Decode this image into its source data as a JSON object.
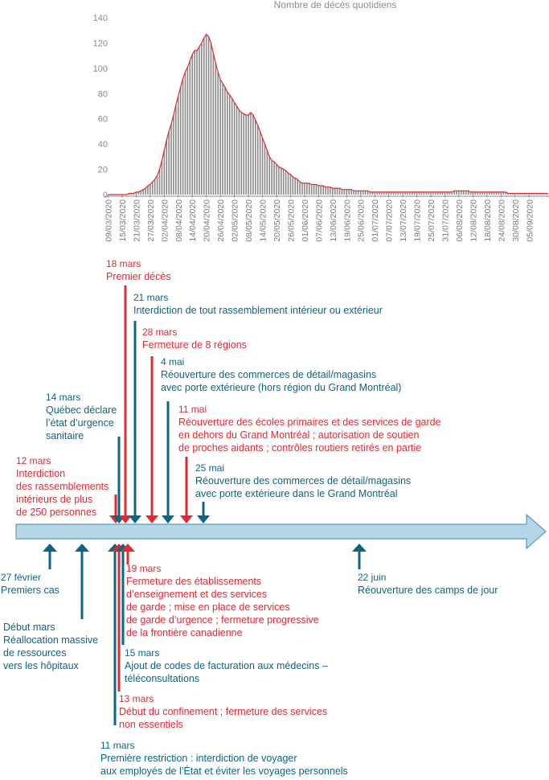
{
  "colors": {
    "red": "#e02a34",
    "blue": "#0c6683",
    "bar": "#8a8a8a",
    "arrow_fill": "#b7d7e8",
    "arrow_stroke": "#5b9cbd"
  },
  "chart_data": {
    "type": "bar",
    "title": "Nombre de décès quotidiens",
    "ylim": [
      0,
      140
    ],
    "yticks": [
      0,
      20,
      40,
      60,
      80,
      100,
      120,
      140
    ],
    "xtick_labels": [
      "09/03/2020",
      "15/03/2020",
      "21/03/2020",
      "27/03/2020",
      "02/04/2020",
      "08/04/2020",
      "14/04/2020",
      "20/04/2020",
      "26/04/2020",
      "02/05/2020",
      "08/05/2020",
      "14/05/2020",
      "20/05/2020",
      "26/05/2020",
      "01/06/2020",
      "07/06/2020",
      "13/06/2020",
      "19/06/2020",
      "25/06/2020",
      "01/07/2020",
      "07/07/2020",
      "13/07/2020",
      "19/07/2020",
      "25/07/2020",
      "31/07/2020",
      "06/08/2020",
      "12/08/2020",
      "18/08/2020",
      "24/08/2020",
      "30/08/2020",
      "05/09/2020"
    ],
    "start_date": "09/03/2020",
    "series": [
      {
        "values": [
          0,
          0,
          0,
          0,
          0,
          0,
          0,
          0,
          0,
          1,
          1,
          1,
          2,
          2,
          3,
          4,
          5,
          7,
          8,
          10,
          12,
          15,
          20,
          27,
          35,
          43,
          50,
          56,
          63,
          71,
          78,
          85,
          92,
          97,
          101,
          106,
          111,
          114,
          114,
          117,
          120,
          124,
          127,
          125,
          120,
          112,
          104,
          97,
          91,
          88,
          85,
          81,
          79,
          76,
          73,
          70,
          67,
          65,
          64,
          63,
          63,
          65,
          63,
          59,
          55,
          50,
          45,
          40,
          35,
          30,
          27,
          26,
          24,
          22,
          21,
          20,
          19,
          17,
          16,
          14,
          13,
          12,
          10,
          9,
          9,
          9,
          9,
          8,
          8,
          8,
          7,
          7,
          7,
          6,
          6,
          6,
          5,
          5,
          5,
          5,
          4,
          4,
          4,
          4,
          4,
          3,
          3,
          3,
          3,
          3,
          3,
          3,
          2,
          2,
          2,
          2,
          2,
          2,
          2,
          2,
          2,
          2,
          2,
          2,
          2,
          2,
          2,
          2,
          2,
          2,
          2,
          2,
          2,
          2,
          2,
          2,
          2,
          2,
          2,
          2,
          2,
          2,
          2,
          2,
          2,
          2,
          2,
          2,
          3,
          3,
          3,
          3,
          3,
          3,
          3,
          2,
          2,
          2,
          2,
          2,
          2,
          2,
          2,
          2,
          2,
          2,
          2,
          2,
          2,
          2,
          2,
          1,
          1,
          1,
          1,
          1,
          1,
          1,
          1,
          1,
          1,
          1,
          1,
          1,
          1,
          1,
          1,
          1,
          1
        ]
      }
    ]
  },
  "events_above": [
    {
      "date": "18 mars",
      "text": [
        "Premier décès"
      ],
      "color": "red"
    },
    {
      "date": "21 mars",
      "text": [
        "Interdiction de tout rassemblement intérieur ou extérieur"
      ],
      "color": "blue"
    },
    {
      "date": "28 mars",
      "text": [
        "Fermeture de 8 régions"
      ],
      "color": "red"
    },
    {
      "date": "4 mai",
      "text": [
        "Réouverture des commerces de détail/magasins",
        "avec porte extérieure (hors région du Grand Montréal)"
      ],
      "color": "blue"
    },
    {
      "date": "14 mars",
      "text": [
        "Québec déclare",
        "l’état d’urgence",
        "sanitaire"
      ],
      "color": "blue"
    },
    {
      "date": "11 mai",
      "text": [
        "Réouverture des écoles primaires et des services de garde",
        "en dehors du Grand Montréal ; autorisation de soutien",
        "de proches aidants ; contrôles routiers retirés en partie"
      ],
      "color": "red"
    },
    {
      "date": "12 mars",
      "text": [
        "Interdiction",
        "des rassemblements",
        "intérieurs de plus",
        "de 250 personnes"
      ],
      "color": "red"
    },
    {
      "date": "25 mai",
      "text": [
        "Réouverture des commerces de détail/magasins",
        "avec porte extérieure dans le Grand Montréal"
      ],
      "color": "blue"
    }
  ],
  "events_below": [
    {
      "date": "27 février",
      "text": [
        "Premiers cas"
      ],
      "color": "blue"
    },
    {
      "date": "",
      "text": [
        "Début mars",
        "Réallocation massive",
        "de ressources",
        "vers les hôpitaux"
      ],
      "color": "blue"
    },
    {
      "date": "19 mars",
      "text": [
        "Fermeture des établissements",
        "d’enseignement et des services",
        "de garde ; mise en place de services",
        "de garde d’urgence ; fermeture progressive",
        "de la frontière canadienne"
      ],
      "color": "red"
    },
    {
      "date": "15 mars",
      "text": [
        "Ajout de codes de facturation aux médecins –",
        "téléconsultations"
      ],
      "color": "blue"
    },
    {
      "date": "13 mars",
      "text": [
        "Début du confinement ; fermeture des services",
        "non essentiels"
      ],
      "color": "red"
    },
    {
      "date": "11 mars",
      "text": [
        "Première restriction : interdiction de voyager",
        "aux employés de l’État et éviter les voyages personnels"
      ],
      "color": "blue"
    },
    {
      "date": "22 juin",
      "text": [
        "Réouverture des camps de jour"
      ],
      "color": "blue"
    }
  ]
}
